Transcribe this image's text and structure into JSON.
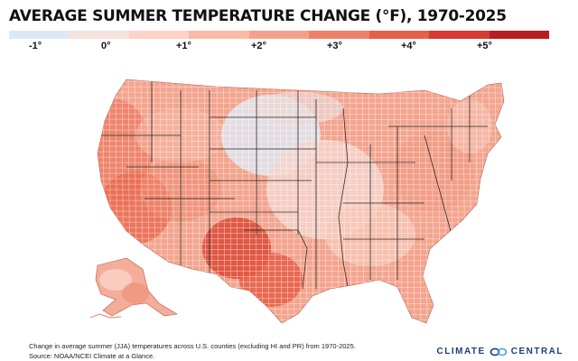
{
  "title": "AVERAGE SUMMER TEMPERATURE CHANGE (°F), 1970-2025",
  "legend": {
    "labels": [
      "-1°",
      "0°",
      "+1°",
      "+2°",
      "+3°",
      "+4°",
      "+5°"
    ],
    "colors": [
      "#dde8f6",
      "#f6e2dd",
      "#fcd3c6",
      "#f9bba9",
      "#f5a08b",
      "#ee8068",
      "#e4604b",
      "#d63a33",
      "#b71d22"
    ]
  },
  "caption": {
    "line1": "Change in average summer (JJA) temperatures across U.S. counties (excluding HI and PR) from 1970-2025.",
    "line2": "Source: NOAA/NCEI Climate at a Glance."
  },
  "brand": {
    "left": "CLIMATE",
    "right": "CENTRAL",
    "color": "#1d3f7a"
  },
  "map": {
    "base_color": "#f3a58f",
    "border_color": "#ffffff",
    "line_color": "#2a2a2a"
  }
}
